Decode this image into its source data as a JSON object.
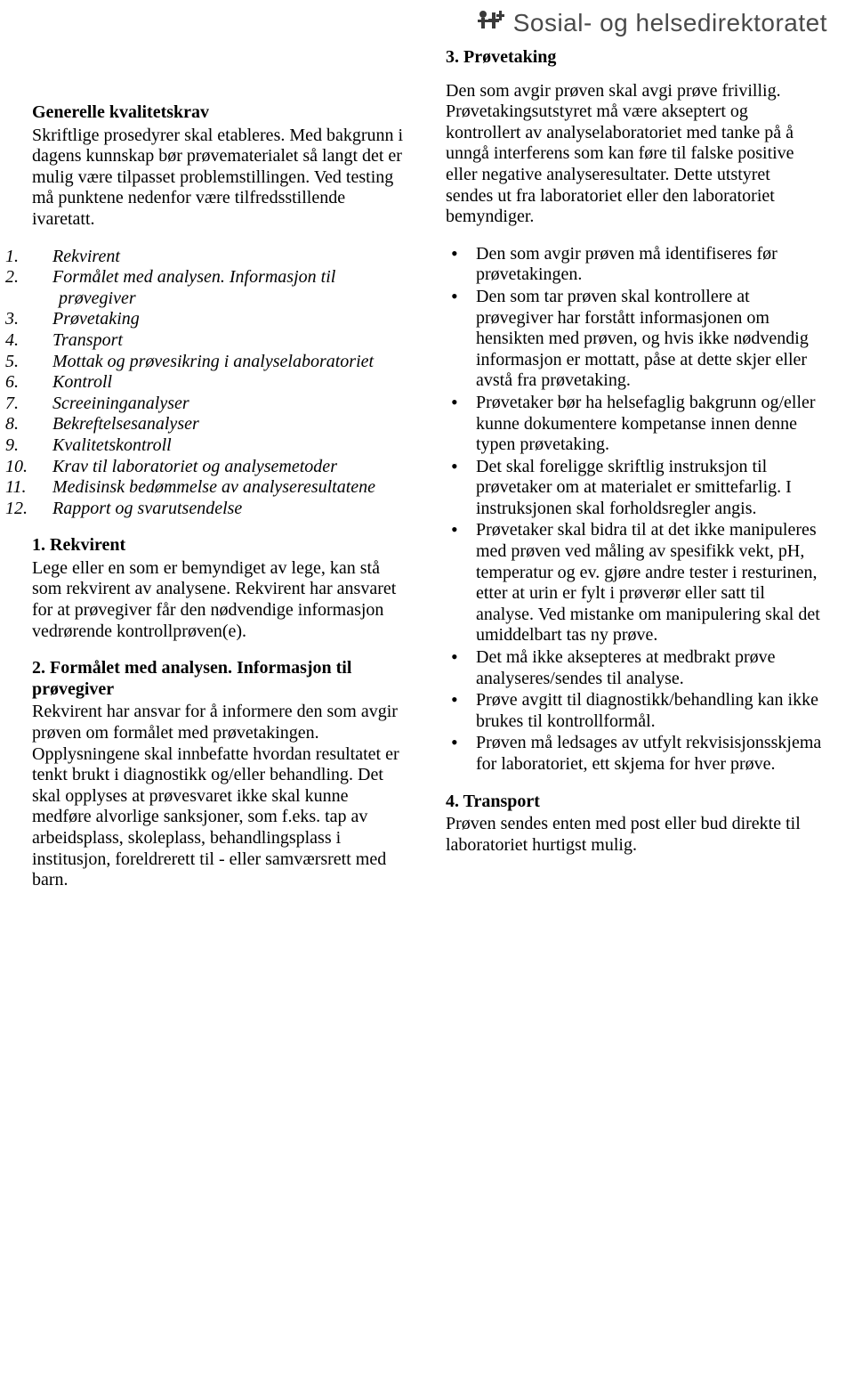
{
  "header": {
    "org_name": "Sosial- og helsedirektoratet"
  },
  "left": {
    "heading1": "Generelle kvalitetskrav",
    "intro": "Skriftlige prosedyrer skal etableres. Med bakgrunn i dagens kunnskap bør prøvematerialet så langt det er mulig være tilpasset problemstillingen. Ved testing må punktene nedenfor være tilfredsstillende ivaretatt.",
    "numbered": [
      "Rekvirent",
      "Formålet med analysen. Informasjon til prøvegiver",
      "Prøvetaking",
      "Transport",
      "Mottak og prøvesikring i analyselaboratoriet",
      "Kontroll",
      "Screeininganalyser",
      "Bekreftelsesanalyser",
      "Kvalitetskontroll",
      "Krav til laboratoriet og analysemetoder",
      "Medisinsk bedømmelse av analyseresultatene",
      "Rapport og svarutsendelse"
    ],
    "sec1_heading": "1. Rekvirent",
    "sec1_body": "Lege eller en som er bemyndiget av lege, kan stå som rekvirent av analysene. Rekvirent har ansvaret for at prøvegiver får den nødvendige informasjon vedrørende kontrollprøven(e).",
    "sec2_heading": "2. Formålet med analysen. Informasjon til prøvegiver",
    "sec2_body": "Rekvirent har ansvar for å informere den som avgir prøven om formålet med prøvetakingen. Opplysningene skal innbefatte hvordan resultatet er tenkt brukt i diagnostikk og/eller behandling. Det skal opplyses at prøvesvaret ikke skal kunne medføre alvorlige sanksjoner, som f.eks. tap av arbeidsplass, skoleplass, behandlingsplass i institusjon, foreldrerett til - eller samværsrett med barn."
  },
  "right": {
    "sec3_heading": "3. Prøvetaking",
    "sec3_body": "Den som avgir prøven skal avgi prøve frivillig. Prøvetakingsutstyret må være akseptert og kontrollert av analyselaboratoriet med tanke på å unngå interferens som kan føre til falske positive eller negative analyseresultater. Dette utstyret sendes ut fra laboratoriet eller den laboratoriet bemyndiger.",
    "bullets": [
      "Den som avgir prøven må identifiseres før prøvetakingen.",
      "Den som tar prøven skal kontrollere at prøvegiver har forstått informasjonen om hensikten med prøven, og hvis ikke nødvendig informasjon er mottatt, påse at dette skjer eller avstå fra prøvetaking.",
      "Prøvetaker bør ha helsefaglig bakgrunn og/eller kunne dokumentere kompetanse innen denne typen prøvetaking.",
      "Det skal foreligge skriftlig instruksjon til prøvetaker om at materialet er smittefarlig. I instruksjonen skal forholdsregler angis.",
      "Prøvetaker skal bidra til at det ikke manipuleres med prøven ved måling av spesifikk vekt, pH, temperatur og ev. gjøre andre tester i resturinen, etter at urin er fylt i prøverør eller satt til analyse. Ved mistanke om manipulering skal det umiddelbart tas ny prøve.",
      "Det må ikke aksepteres at medbrakt prøve analyseres/sendes til analyse.",
      "Prøve avgitt til diagnostikk/behandling kan ikke brukes til kontrollformål.",
      "Prøven må ledsages av utfylt rekvisisjonsskjema for laboratoriet, ett skjema for hver prøve."
    ],
    "sec4_heading": "4. Transport",
    "sec4_body": "Prøven sendes enten med post eller bud direkte til laboratoriet hurtigst mulig."
  },
  "colors": {
    "text": "#000000",
    "header_text": "#4a4a4a",
    "background": "#ffffff"
  }
}
